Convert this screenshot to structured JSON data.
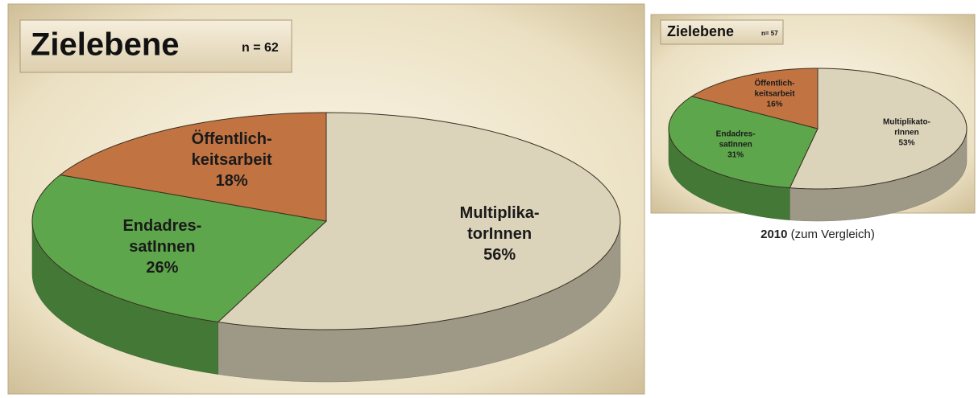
{
  "chart_data": [
    {
      "type": "pie",
      "title": "Zielebene",
      "subtitle": "n = 62",
      "categories": [
        [
          "Multiplika-",
          "torInnen"
        ],
        [
          "Endadres-",
          "satInnen"
        ],
        [
          "Öffentlich-",
          "keitsarbeit"
        ]
      ],
      "values": [
        56,
        26,
        18
      ],
      "value_labels": [
        "56%",
        "26%",
        "18%"
      ],
      "colors": [
        "#dcd3bb",
        "#5ea64c",
        "#c27342"
      ]
    },
    {
      "type": "pie",
      "title": "Zielebene",
      "subtitle": "n= 57",
      "categories": [
        [
          "Multiplikato-",
          "rInnen"
        ],
        [
          "Endadres-",
          "satInnen"
        ],
        [
          "Öffentlich-",
          "keitsarbeit"
        ]
      ],
      "values": [
        53,
        31,
        16
      ],
      "value_labels": [
        "53%",
        "31%",
        "16%"
      ],
      "colors": [
        "#dcd3bb",
        "#5ea64c",
        "#c27342"
      ],
      "caption": {
        "year": "2010",
        "text": "(zum Vergleich)"
      }
    }
  ]
}
